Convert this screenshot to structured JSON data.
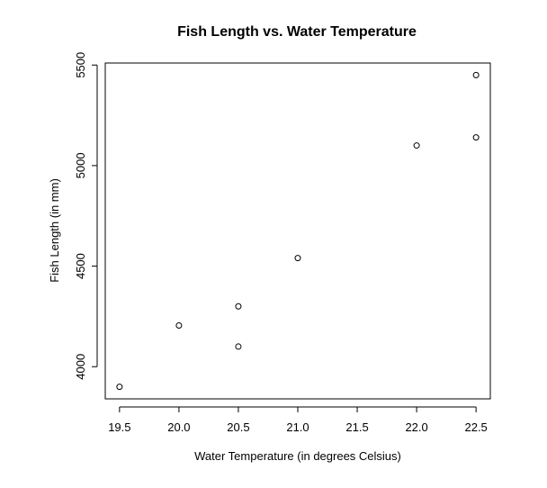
{
  "chart_data": {
    "type": "scatter",
    "title": "Fish Length vs. Water Temperature",
    "xlabel": "Water Temperature (in degrees Celsius)",
    "ylabel": "Fish Length (in mm)",
    "xlim": [
      19.38,
      22.62
    ],
    "ylim": [
      3840,
      5510
    ],
    "x_ticks": [
      "19.5",
      "20.0",
      "20.5",
      "21.0",
      "21.5",
      "22.0",
      "22.5"
    ],
    "y_ticks": [
      "4000",
      "4500",
      "5000",
      "5500"
    ],
    "points": [
      {
        "x": 19.5,
        "y": 3900
      },
      {
        "x": 20.0,
        "y": 4205
      },
      {
        "x": 20.5,
        "y": 4300
      },
      {
        "x": 20.5,
        "y": 4100
      },
      {
        "x": 21.0,
        "y": 4540
      },
      {
        "x": 22.0,
        "y": 5100
      },
      {
        "x": 22.5,
        "y": 5140
      },
      {
        "x": 22.5,
        "y": 5450
      }
    ],
    "grid": false,
    "legend": null,
    "colors": {
      "points": "#000000",
      "axes": "#000000",
      "background": "#ffffff"
    }
  }
}
